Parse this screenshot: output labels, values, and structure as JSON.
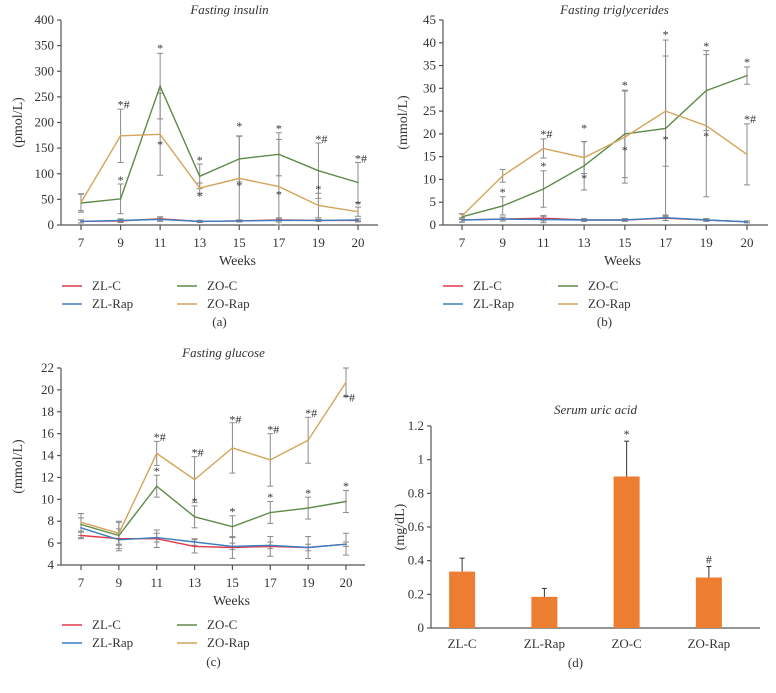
{
  "legend": [
    {
      "name": "ZL-C",
      "color": "#e0394a"
    },
    {
      "name": "ZL-Rap",
      "color": "#3a7fc0"
    },
    {
      "name": "ZO-C",
      "color": "#5e8a48"
    },
    {
      "name": "ZO-Rap",
      "color": "#d4a45a"
    }
  ],
  "bar_color": "#ed7d31",
  "chart_data": [
    {
      "id": "a",
      "type": "line",
      "title": "Fasting insulin",
      "panel_label": "(a)",
      "xlabel": "Weeks",
      "ylabel": "(pmol/L)",
      "categories": [
        "7",
        "9",
        "11",
        "13",
        "15",
        "17",
        "19",
        "20"
      ],
      "ylim": [
        0,
        400
      ],
      "yticks": [
        "0",
        "50",
        "100",
        "150",
        "200",
        "250",
        "300",
        "350",
        "400"
      ],
      "series": [
        {
          "name": "ZL-C",
          "values": [
            7,
            8,
            12,
            7,
            8,
            10,
            9,
            9
          ],
          "err": [
            3,
            3,
            4,
            2,
            2,
            4,
            2,
            3
          ]
        },
        {
          "name": "ZL-Rap",
          "values": [
            7,
            9,
            11,
            7,
            8,
            9,
            9,
            10
          ],
          "err": [
            3,
            3,
            4,
            2,
            2,
            3,
            2,
            2
          ]
        },
        {
          "name": "ZO-C",
          "values": [
            43,
            51,
            271,
            95,
            129,
            138,
            106,
            83
          ],
          "err": [
            18,
            29,
            64,
            24,
            45,
            42,
            54,
            39
          ]
        },
        {
          "name": "ZO-Rap",
          "values": [
            44,
            174,
            177,
            72,
            91,
            75,
            38,
            26
          ],
          "err": [
            16,
            52,
            80,
            10,
            82,
            92,
            24,
            9
          ]
        }
      ],
      "annotations": [
        {
          "x": "9",
          "y": 235,
          "text": "*#"
        },
        {
          "x": "9",
          "y": 88,
          "text": "*"
        },
        {
          "x": "11",
          "y": 345,
          "text": "*"
        },
        {
          "x": "11",
          "y": 157,
          "text": "*"
        },
        {
          "x": "13",
          "y": 127,
          "text": "*"
        },
        {
          "x": "13",
          "y": 57,
          "text": "*"
        },
        {
          "x": "15",
          "y": 193,
          "text": "*"
        },
        {
          "x": "15",
          "y": 77,
          "text": "*"
        },
        {
          "x": "17",
          "y": 188,
          "text": "*"
        },
        {
          "x": "17",
          "y": 60,
          "text": "*"
        },
        {
          "x": "19",
          "y": 168,
          "text": "*#"
        },
        {
          "x": "19",
          "y": 70,
          "text": "*"
        },
        {
          "x": "20",
          "y": 130,
          "text": "*#"
        },
        {
          "x": "20",
          "y": 40,
          "text": "*"
        }
      ]
    },
    {
      "id": "b",
      "type": "line",
      "title": "Fasting triglycerides",
      "panel_label": "(b)",
      "xlabel": "Weeks",
      "ylabel": "(mmol/L)",
      "categories": [
        "7",
        "9",
        "11",
        "13",
        "15",
        "17",
        "19",
        "20"
      ],
      "ylim": [
        0,
        45
      ],
      "yticks": [
        "0",
        "5",
        "10",
        "15",
        "20",
        "25",
        "30",
        "35",
        "40",
        "45"
      ],
      "series": [
        {
          "name": "ZL-C",
          "values": [
            1.1,
            1.3,
            1.5,
            1.1,
            1.1,
            1.5,
            1.1,
            0.7
          ],
          "err": [
            0.5,
            0.4,
            0.6,
            0.3,
            0.3,
            0.5,
            0.3,
            0.2
          ]
        },
        {
          "name": "ZL-Rap",
          "values": [
            1.1,
            1.3,
            1.2,
            1.1,
            1.1,
            1.6,
            1.1,
            0.7
          ],
          "err": [
            0.4,
            0.4,
            0.7,
            0.3,
            0.3,
            0.6,
            0.3,
            0.2
          ]
        },
        {
          "name": "ZO-C",
          "values": [
            1.8,
            4.2,
            7.9,
            13.0,
            20.0,
            21.2,
            29.5,
            32.8
          ],
          "err": [
            0.6,
            2.0,
            4.0,
            5.3,
            9.6,
            19.4,
            8.8,
            1.9
          ]
        },
        {
          "name": "ZO-Rap",
          "values": [
            2.0,
            10.8,
            16.8,
            14.8,
            19.3,
            25.0,
            21.8,
            15.5
          ],
          "err": [
            0.5,
            1.4,
            2.1,
            3.5,
            10.1,
            12.1,
            15.6,
            6.7
          ]
        }
      ],
      "annotations": [
        {
          "x": "9",
          "y": 7.2,
          "text": "*"
        },
        {
          "x": "11",
          "y": 13.0,
          "text": "*"
        },
        {
          "x": "11",
          "y": 20.0,
          "text": "*#"
        },
        {
          "x": "13",
          "y": 21.3,
          "text": "*"
        },
        {
          "x": "13",
          "y": 10.3,
          "text": "*"
        },
        {
          "x": "15",
          "y": 30.7,
          "text": "*"
        },
        {
          "x": "15",
          "y": 16.5,
          "text": "*"
        },
        {
          "x": "17",
          "y": 41.8,
          "text": "*"
        },
        {
          "x": "17",
          "y": 18.8,
          "text": "*"
        },
        {
          "x": "19",
          "y": 39.3,
          "text": "*"
        },
        {
          "x": "19",
          "y": 19.5,
          "text": "*"
        },
        {
          "x": "20",
          "y": 35.8,
          "text": "*"
        },
        {
          "x": "20",
          "y": 23.3,
          "text": "*#"
        }
      ]
    },
    {
      "id": "c",
      "type": "line",
      "title": "Fasting glucose",
      "panel_label": "(c)",
      "xlabel": "Weeks",
      "ylabel": "(mmol/L)",
      "categories": [
        "7",
        "9",
        "11",
        "13",
        "15",
        "17",
        "19",
        "20"
      ],
      "ylim": [
        4,
        22
      ],
      "yticks": [
        "4",
        "6",
        "8",
        "10",
        "12",
        "14",
        "16",
        "18",
        "20",
        "22"
      ],
      "series": [
        {
          "name": "ZL-C",
          "values": [
            6.7,
            6.4,
            6.4,
            5.7,
            5.6,
            5.7,
            5.6,
            5.9
          ],
          "err": [
            0.3,
            0.5,
            0.8,
            0.6,
            1.0,
            0.9,
            1.0,
            1.0
          ]
        },
        {
          "name": "ZL-Rap",
          "values": [
            7.4,
            6.3,
            6.5,
            6.1,
            5.7,
            5.8,
            5.6,
            5.9
          ],
          "err": [
            0.9,
            1.0,
            0.4,
            0.3,
            0.3,
            0.3,
            0.3,
            0.2
          ]
        },
        {
          "name": "ZO-C",
          "values": [
            7.7,
            6.7,
            11.2,
            8.4,
            7.5,
            8.8,
            9.2,
            9.8
          ],
          "err": [
            1.0,
            1.2,
            1.0,
            1.0,
            1.0,
            1.0,
            1.0,
            1.0
          ]
        },
        {
          "name": "ZO-Rap",
          "values": [
            7.9,
            6.9,
            14.2,
            11.8,
            14.7,
            13.6,
            15.4,
            20.7
          ],
          "err": [
            0.8,
            1.1,
            1.1,
            2.1,
            2.3,
            2.4,
            2.1,
            1.3
          ]
        }
      ],
      "annotations": [
        {
          "x": "11",
          "y": 15.7,
          "text": "*#"
        },
        {
          "x": "11",
          "y": 12.6,
          "text": "*"
        },
        {
          "x": "13",
          "y": 14.3,
          "text": "*#"
        },
        {
          "x": "13",
          "y": 9.8,
          "text": "*"
        },
        {
          "x": "15",
          "y": 17.3,
          "text": "*#"
        },
        {
          "x": "15",
          "y": 8.9,
          "text": "*"
        },
        {
          "x": "17",
          "y": 16.4,
          "text": "*#"
        },
        {
          "x": "17",
          "y": 10.2,
          "text": "*"
        },
        {
          "x": "19",
          "y": 17.9,
          "text": "*#"
        },
        {
          "x": "19",
          "y": 10.6,
          "text": "*"
        },
        {
          "x": "20",
          "y": 11.2,
          "text": "*"
        },
        {
          "x": "20",
          "y": 19.3,
          "text": "*#"
        }
      ]
    },
    {
      "id": "d",
      "type": "bar",
      "title": "Serum uric acid",
      "panel_label": "(d)",
      "xlabel": "",
      "ylabel": "(mg/dL)",
      "categories": [
        "ZL-C",
        "ZL-Rap",
        "ZO-C",
        "ZO-Rap"
      ],
      "ylim": [
        0,
        1.2
      ],
      "yticks": [
        "0",
        "0.2",
        "0.4",
        "0.6",
        "0.8",
        "1",
        "1.2"
      ],
      "values": [
        0.335,
        0.185,
        0.9,
        0.3
      ],
      "err": [
        0.08,
        0.05,
        0.21,
        0.065
      ],
      "annotations": [
        {
          "x": "ZO-C",
          "text": "*"
        },
        {
          "x": "ZO-Rap",
          "text": "#"
        }
      ]
    }
  ]
}
